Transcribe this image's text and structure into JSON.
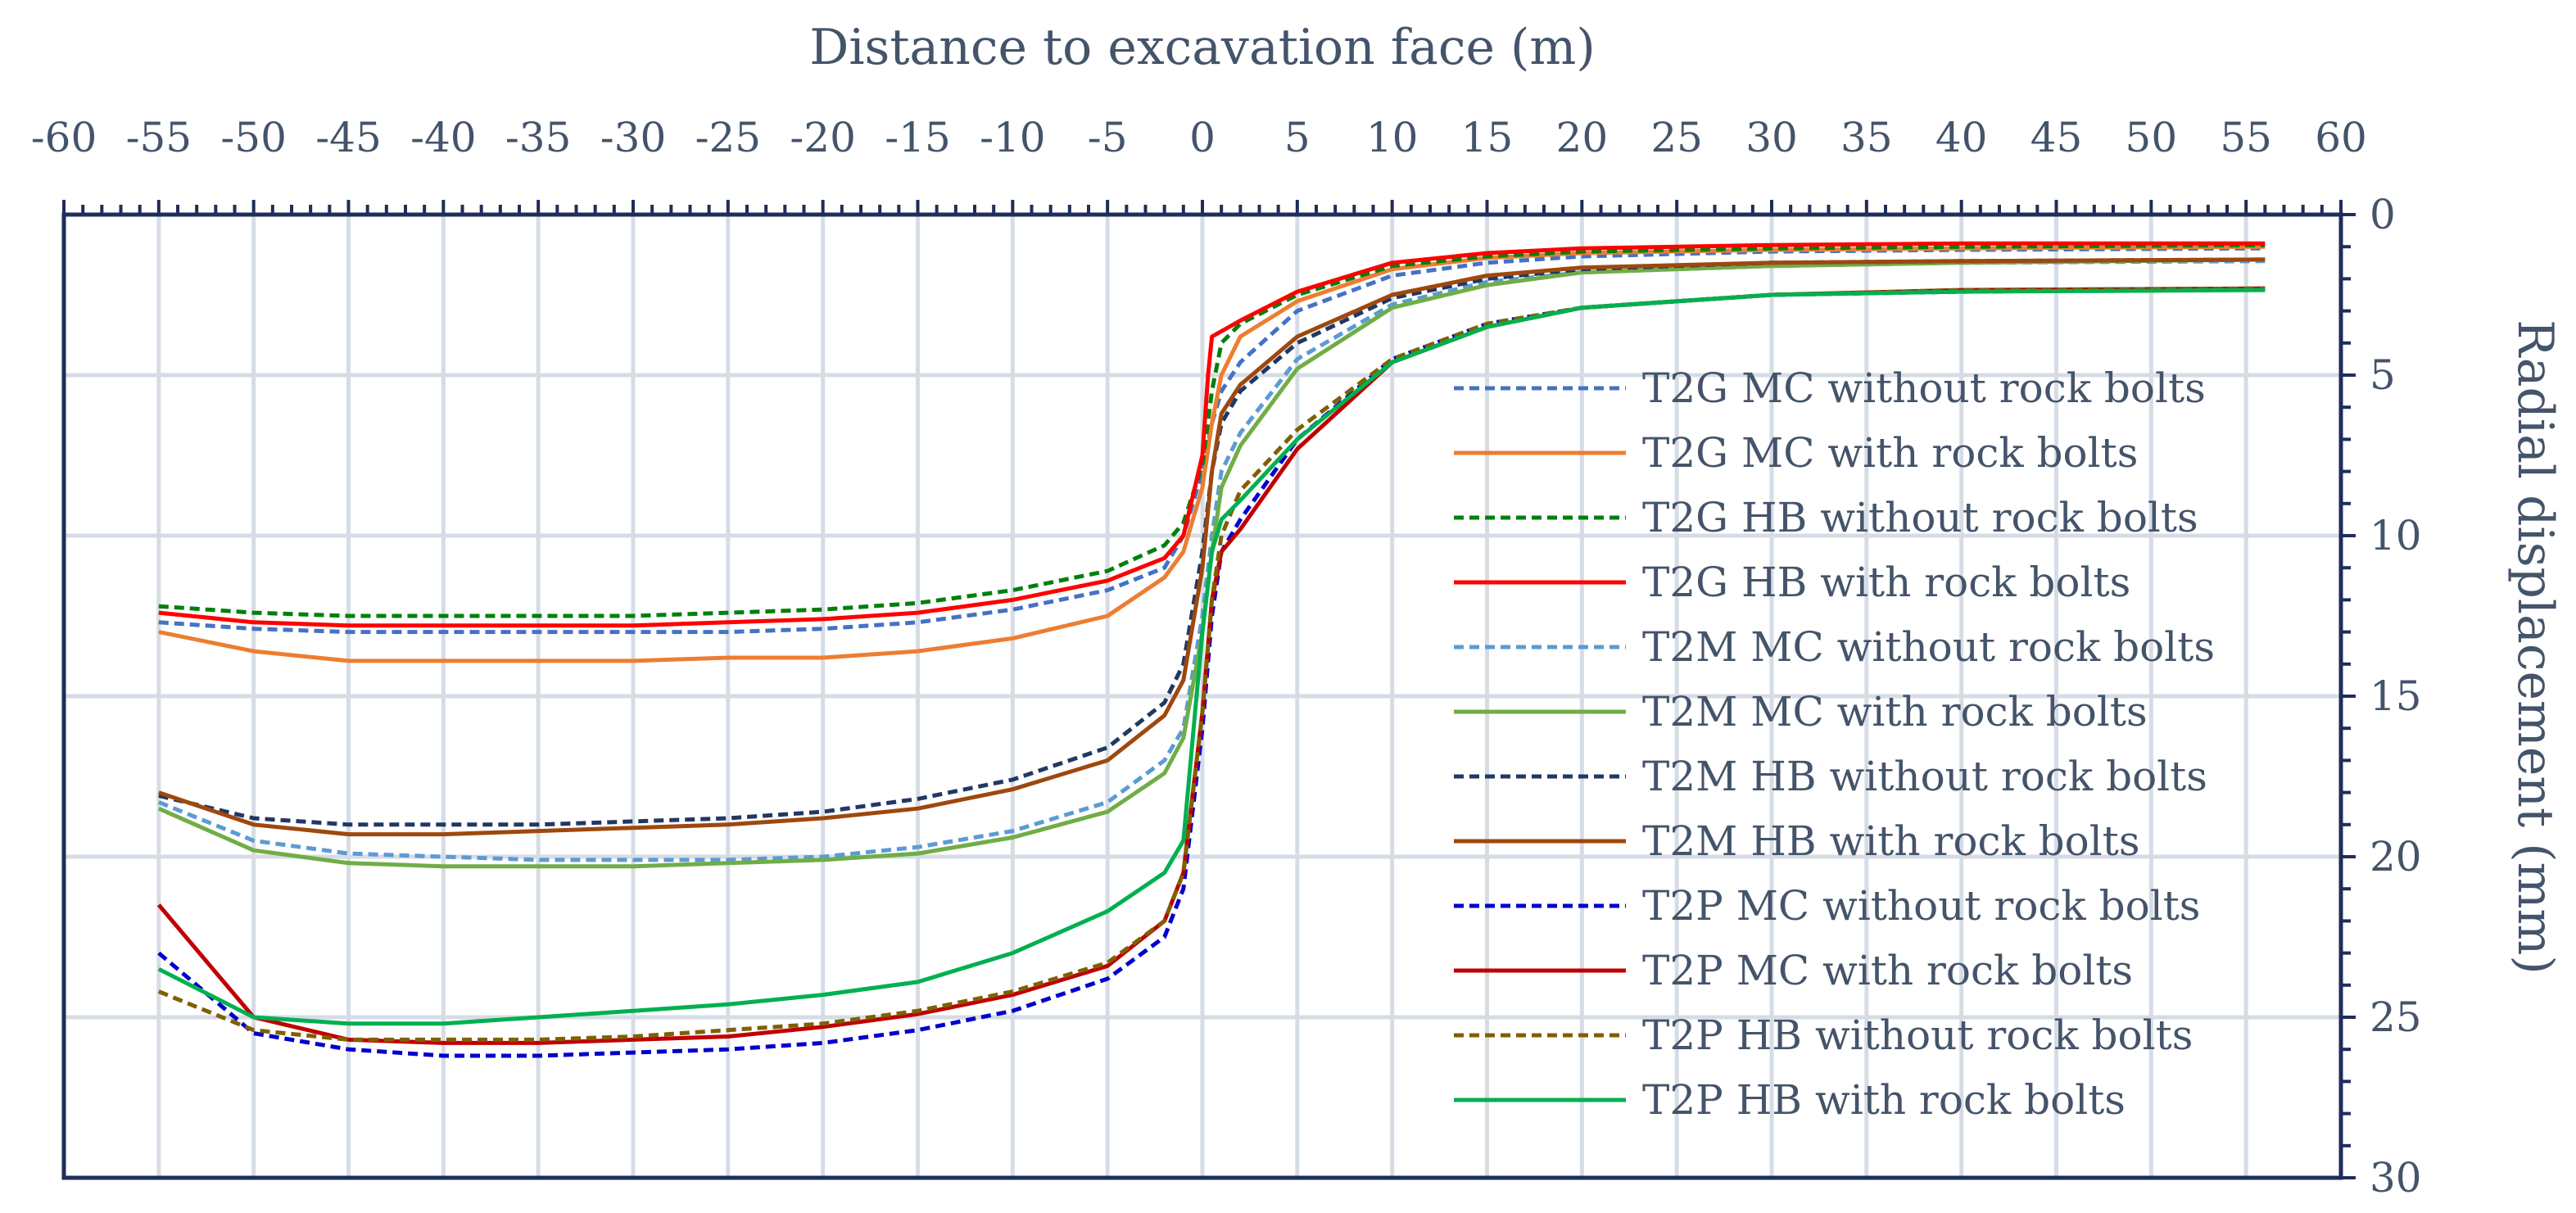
{
  "chart_data": {
    "type": "line",
    "xlabel": "Distance to excavation face (m)",
    "ylabel": "Radial displacement (mm)",
    "xlim": [
      -60,
      60
    ],
    "ylim": [
      0,
      30
    ],
    "y_inverted": true,
    "x_axis_position": "top",
    "y_axis_position": "right",
    "grid": true,
    "legend_position": "right, inside plot",
    "x_ticks": [
      "-60",
      "-55",
      "-50",
      "-45",
      "-40",
      "-35",
      "-30",
      "-25",
      "-20",
      "-15",
      "-10",
      "-5",
      "0",
      "5",
      "10",
      "15",
      "20",
      "25",
      "30",
      "35",
      "40",
      "45",
      "50",
      "55",
      "60"
    ],
    "y_ticks": [
      "0",
      "5",
      "10",
      "15",
      "20",
      "25",
      "30"
    ],
    "series": [
      {
        "name": "T2G MC without rock bolts",
        "color": "#4472C4",
        "dash": true,
        "points": [
          [
            -55,
            12.7
          ],
          [
            -50,
            12.9
          ],
          [
            -45,
            13.0
          ],
          [
            -40,
            13.0
          ],
          [
            -35,
            13.0
          ],
          [
            -30,
            13.0
          ],
          [
            -25,
            13.0
          ],
          [
            -20,
            12.9
          ],
          [
            -15,
            12.7
          ],
          [
            -10,
            12.3
          ],
          [
            -5,
            11.7
          ],
          [
            -2,
            11.0
          ],
          [
            -1,
            10.0
          ],
          [
            0,
            8.0
          ],
          [
            0.5,
            6.5
          ],
          [
            1,
            5.5
          ],
          [
            2,
            4.6
          ],
          [
            5,
            3.0
          ],
          [
            10,
            1.9
          ],
          [
            15,
            1.5
          ],
          [
            20,
            1.3
          ],
          [
            30,
            1.15
          ],
          [
            40,
            1.1
          ],
          [
            56,
            1.05
          ]
        ]
      },
      {
        "name": "T2G MC with rock bolts",
        "color": "#ED7D31",
        "dash": false,
        "points": [
          [
            -55,
            13.0
          ],
          [
            -50,
            13.6
          ],
          [
            -45,
            13.9
          ],
          [
            -40,
            13.9
          ],
          [
            -35,
            13.9
          ],
          [
            -30,
            13.9
          ],
          [
            -25,
            13.8
          ],
          [
            -20,
            13.8
          ],
          [
            -15,
            13.6
          ],
          [
            -10,
            13.2
          ],
          [
            -5,
            12.5
          ],
          [
            -2,
            11.3
          ],
          [
            -1,
            10.5
          ],
          [
            0,
            8.5
          ],
          [
            0.5,
            6.5
          ],
          [
            1,
            5.0
          ],
          [
            2,
            3.8
          ],
          [
            5,
            2.7
          ],
          [
            10,
            1.7
          ],
          [
            15,
            1.35
          ],
          [
            20,
            1.2
          ],
          [
            30,
            1.1
          ],
          [
            40,
            1.05
          ],
          [
            56,
            1.0
          ]
        ]
      },
      {
        "name": "T2G HB without rock bolts",
        "color": "#00800B",
        "dash": true,
        "points": [
          [
            -55,
            12.2
          ],
          [
            -50,
            12.4
          ],
          [
            -45,
            12.5
          ],
          [
            -40,
            12.5
          ],
          [
            -35,
            12.5
          ],
          [
            -30,
            12.5
          ],
          [
            -25,
            12.4
          ],
          [
            -20,
            12.3
          ],
          [
            -15,
            12.1
          ],
          [
            -10,
            11.7
          ],
          [
            -5,
            11.1
          ],
          [
            -2,
            10.3
          ],
          [
            -1,
            9.6
          ],
          [
            0,
            7.8
          ],
          [
            0.5,
            5.5
          ],
          [
            1,
            4.0
          ],
          [
            2,
            3.4
          ],
          [
            5,
            2.5
          ],
          [
            10,
            1.6
          ],
          [
            15,
            1.3
          ],
          [
            20,
            1.15
          ],
          [
            30,
            1.05
          ],
          [
            40,
            1.0
          ],
          [
            56,
            0.95
          ]
        ]
      },
      {
        "name": "T2G HB with rock bolts",
        "color": "#FF0000",
        "dash": false,
        "points": [
          [
            -55,
            12.4
          ],
          [
            -50,
            12.7
          ],
          [
            -45,
            12.8
          ],
          [
            -40,
            12.8
          ],
          [
            -35,
            12.8
          ],
          [
            -30,
            12.8
          ],
          [
            -25,
            12.7
          ],
          [
            -20,
            12.6
          ],
          [
            -15,
            12.4
          ],
          [
            -10,
            12.0
          ],
          [
            -5,
            11.4
          ],
          [
            -2,
            10.7
          ],
          [
            -1,
            10.0
          ],
          [
            0,
            7.5
          ],
          [
            0.3,
            5.0
          ],
          [
            0.5,
            3.8
          ],
          [
            2,
            3.3
          ],
          [
            5,
            2.4
          ],
          [
            10,
            1.5
          ],
          [
            15,
            1.2
          ],
          [
            20,
            1.05
          ],
          [
            30,
            0.95
          ],
          [
            40,
            0.9
          ],
          [
            56,
            0.9
          ]
        ]
      },
      {
        "name": "T2M MC without rock bolts",
        "color": "#5B9BD5",
        "dash": true,
        "points": [
          [
            -55,
            18.3
          ],
          [
            -50,
            19.5
          ],
          [
            -45,
            19.9
          ],
          [
            -40,
            20.0
          ],
          [
            -35,
            20.1
          ],
          [
            -30,
            20.1
          ],
          [
            -25,
            20.1
          ],
          [
            -20,
            20.0
          ],
          [
            -15,
            19.7
          ],
          [
            -10,
            19.2
          ],
          [
            -5,
            18.3
          ],
          [
            -2,
            17.0
          ],
          [
            -1,
            16.0
          ],
          [
            0,
            12.5
          ],
          [
            0.5,
            10.0
          ],
          [
            1,
            8.0
          ],
          [
            2,
            6.8
          ],
          [
            5,
            4.5
          ],
          [
            10,
            2.8
          ],
          [
            15,
            2.1
          ],
          [
            20,
            1.8
          ],
          [
            30,
            1.6
          ],
          [
            40,
            1.5
          ],
          [
            56,
            1.45
          ]
        ]
      },
      {
        "name": "T2M MC with rock bolts",
        "color": "#70AD47",
        "dash": false,
        "points": [
          [
            -55,
            18.5
          ],
          [
            -50,
            19.8
          ],
          [
            -45,
            20.2
          ],
          [
            -40,
            20.3
          ],
          [
            -35,
            20.3
          ],
          [
            -30,
            20.3
          ],
          [
            -25,
            20.2
          ],
          [
            -20,
            20.1
          ],
          [
            -15,
            19.9
          ],
          [
            -10,
            19.4
          ],
          [
            -5,
            18.6
          ],
          [
            -2,
            17.4
          ],
          [
            -1,
            16.3
          ],
          [
            0,
            13.0
          ],
          [
            0.5,
            10.5
          ],
          [
            1,
            8.5
          ],
          [
            2,
            7.2
          ],
          [
            5,
            4.8
          ],
          [
            10,
            2.9
          ],
          [
            15,
            2.2
          ],
          [
            20,
            1.8
          ],
          [
            30,
            1.6
          ],
          [
            40,
            1.5
          ],
          [
            56,
            1.4
          ]
        ]
      },
      {
        "name": "T2M HB without rock bolts",
        "color": "#203864",
        "dash": true,
        "points": [
          [
            -55,
            18.1
          ],
          [
            -50,
            18.8
          ],
          [
            -45,
            19.0
          ],
          [
            -40,
            19.0
          ],
          [
            -35,
            19.0
          ],
          [
            -30,
            18.9
          ],
          [
            -25,
            18.8
          ],
          [
            -20,
            18.6
          ],
          [
            -15,
            18.2
          ],
          [
            -10,
            17.6
          ],
          [
            -5,
            16.6
          ],
          [
            -2,
            15.2
          ],
          [
            -1,
            14.0
          ],
          [
            0,
            10.5
          ],
          [
            0.5,
            8.0
          ],
          [
            1,
            6.5
          ],
          [
            2,
            5.5
          ],
          [
            5,
            4.0
          ],
          [
            10,
            2.6
          ],
          [
            15,
            2.0
          ],
          [
            20,
            1.7
          ],
          [
            30,
            1.5
          ],
          [
            40,
            1.45
          ],
          [
            56,
            1.4
          ]
        ]
      },
      {
        "name": "T2M HB with rock bolts",
        "color": "#9E480E",
        "dash": false,
        "points": [
          [
            -55,
            18.0
          ],
          [
            -50,
            19.0
          ],
          [
            -45,
            19.3
          ],
          [
            -40,
            19.3
          ],
          [
            -35,
            19.2
          ],
          [
            -30,
            19.1
          ],
          [
            -25,
            19.0
          ],
          [
            -20,
            18.8
          ],
          [
            -15,
            18.5
          ],
          [
            -10,
            17.9
          ],
          [
            -5,
            17.0
          ],
          [
            -2,
            15.6
          ],
          [
            -1,
            14.5
          ],
          [
            0,
            11.0
          ],
          [
            0.5,
            8.0
          ],
          [
            1,
            6.2
          ],
          [
            2,
            5.3
          ],
          [
            5,
            3.8
          ],
          [
            10,
            2.5
          ],
          [
            15,
            1.9
          ],
          [
            20,
            1.65
          ],
          [
            30,
            1.5
          ],
          [
            40,
            1.45
          ],
          [
            56,
            1.4
          ]
        ]
      },
      {
        "name": "T2P MC without rock bolts",
        "color": "#0000CC",
        "dash": true,
        "points": [
          [
            -55,
            23.0
          ],
          [
            -50,
            25.5
          ],
          [
            -45,
            26.0
          ],
          [
            -40,
            26.2
          ],
          [
            -35,
            26.2
          ],
          [
            -30,
            26.1
          ],
          [
            -25,
            26.0
          ],
          [
            -20,
            25.8
          ],
          [
            -15,
            25.4
          ],
          [
            -10,
            24.8
          ],
          [
            -5,
            23.8
          ],
          [
            -2,
            22.5
          ],
          [
            -1,
            21.0
          ],
          [
            0,
            16.0
          ],
          [
            0.5,
            12.5
          ],
          [
            1,
            10.5
          ],
          [
            2,
            9.5
          ],
          [
            5,
            7.0
          ],
          [
            10,
            4.5
          ],
          [
            15,
            3.4
          ],
          [
            20,
            2.9
          ],
          [
            30,
            2.5
          ],
          [
            40,
            2.4
          ],
          [
            56,
            2.3
          ]
        ]
      },
      {
        "name": "T2P MC with rock bolts",
        "color": "#C00000",
        "dash": false,
        "points": [
          [
            -55,
            21.5
          ],
          [
            -50,
            25.0
          ],
          [
            -45,
            25.7
          ],
          [
            -40,
            25.8
          ],
          [
            -35,
            25.8
          ],
          [
            -30,
            25.7
          ],
          [
            -25,
            25.6
          ],
          [
            -20,
            25.3
          ],
          [
            -15,
            24.9
          ],
          [
            -10,
            24.3
          ],
          [
            -5,
            23.4
          ],
          [
            -2,
            22.0
          ],
          [
            -1,
            20.5
          ],
          [
            0,
            15.5
          ],
          [
            0.5,
            12.0
          ],
          [
            1,
            10.5
          ],
          [
            2,
            9.8
          ],
          [
            5,
            7.3
          ],
          [
            10,
            4.6
          ],
          [
            15,
            3.5
          ],
          [
            20,
            2.9
          ],
          [
            30,
            2.5
          ],
          [
            40,
            2.35
          ],
          [
            56,
            2.3
          ]
        ]
      },
      {
        "name": "T2P HB without rock bolts",
        "color": "#7F6000",
        "dash": true,
        "points": [
          [
            -55,
            24.2
          ],
          [
            -50,
            25.4
          ],
          [
            -45,
            25.7
          ],
          [
            -40,
            25.7
          ],
          [
            -35,
            25.7
          ],
          [
            -30,
            25.6
          ],
          [
            -25,
            25.4
          ],
          [
            -20,
            25.2
          ],
          [
            -15,
            24.8
          ],
          [
            -10,
            24.2
          ],
          [
            -5,
            23.3
          ],
          [
            -2,
            22.0
          ],
          [
            -1,
            20.5
          ],
          [
            0,
            15.5
          ],
          [
            0.5,
            12.0
          ],
          [
            1,
            10.0
          ],
          [
            2,
            8.6
          ],
          [
            5,
            6.7
          ],
          [
            10,
            4.5
          ],
          [
            15,
            3.4
          ],
          [
            20,
            2.9
          ],
          [
            30,
            2.5
          ],
          [
            40,
            2.35
          ],
          [
            56,
            2.3
          ]
        ]
      },
      {
        "name": "T2P HB with rock bolts",
        "color": "#00B050",
        "dash": false,
        "points": [
          [
            -55,
            23.5
          ],
          [
            -50,
            25.0
          ],
          [
            -45,
            25.2
          ],
          [
            -40,
            25.2
          ],
          [
            -35,
            25.0
          ],
          [
            -30,
            24.8
          ],
          [
            -25,
            24.6
          ],
          [
            -20,
            24.3
          ],
          [
            -15,
            23.9
          ],
          [
            -10,
            23.0
          ],
          [
            -5,
            21.7
          ],
          [
            -2,
            20.5
          ],
          [
            -1,
            19.5
          ],
          [
            0,
            13.0
          ],
          [
            0.5,
            10.5
          ],
          [
            1,
            9.5
          ],
          [
            2,
            8.9
          ],
          [
            5,
            7.0
          ],
          [
            10,
            4.6
          ],
          [
            15,
            3.5
          ],
          [
            20,
            2.9
          ],
          [
            30,
            2.5
          ],
          [
            40,
            2.4
          ],
          [
            56,
            2.35
          ]
        ]
      }
    ]
  }
}
